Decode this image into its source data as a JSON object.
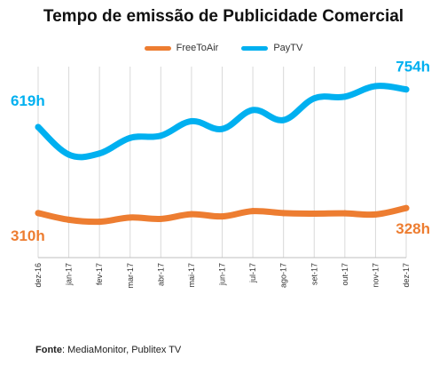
{
  "title": "Tempo de emissão de Publicidade Comercial",
  "source_prefix": "Fonte",
  "source_text": ": MediaMonitor, Publitex TV",
  "chart_data": {
    "type": "line",
    "title": "Tempo de emissão de Publicidade Comercial",
    "x": [
      "dez-16",
      "jan-17",
      "fev-17",
      "mar-17",
      "abr-17",
      "mai-17",
      "jun-17",
      "jul-17",
      "ago-17",
      "set-17",
      "out-17",
      "nov-17",
      "dez-17"
    ],
    "ylim": [
      150,
      820
    ],
    "grid": "vertical",
    "legend": "top-center",
    "series": [
      {
        "name": "FreeToAir",
        "color": "#ED7D31",
        "values": [
          310,
          286,
          279,
          294,
          289,
          306,
          298,
          317,
          310,
          308,
          309,
          305,
          328
        ],
        "start_label": "310h",
        "end_label": "328h"
      },
      {
        "name": "PayTV",
        "color": "#00B0F0",
        "values": [
          619,
          520,
          524,
          580,
          588,
          640,
          612,
          680,
          644,
          722,
          728,
          766,
          754
        ],
        "start_label": "619h",
        "end_label": "754h"
      }
    ]
  }
}
